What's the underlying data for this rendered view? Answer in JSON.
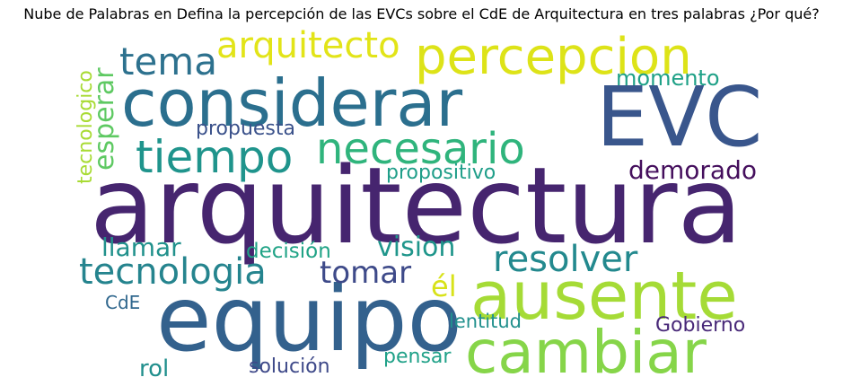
{
  "title": "Nube de Palabras en Defina la percepción de las EVCs sobre el CdE de Arquitectura en tres palabras ¿Por qué?",
  "words": [
    {
      "text": "arquitectura",
      "color": "#46256f"
    },
    {
      "text": "considerar",
      "color": "#2b6f8e"
    },
    {
      "text": "EVC",
      "color": "#39568c"
    },
    {
      "text": "equipo",
      "color": "#33618d"
    },
    {
      "text": "ausente",
      "color": "#a5db36"
    },
    {
      "text": "cambiar",
      "color": "#86d549"
    },
    {
      "text": "percepcion",
      "color": "#dde318"
    },
    {
      "text": "necesario",
      "color": "#2fb47c"
    },
    {
      "text": "tiempo",
      "color": "#1f948c"
    },
    {
      "text": "arquitecto",
      "color": "#e2e418"
    },
    {
      "text": "tema",
      "color": "#2d718e"
    },
    {
      "text": "tecnologia",
      "color": "#25848e"
    },
    {
      "text": "resolver",
      "color": "#23898e"
    },
    {
      "text": "tomar",
      "color": "#3e4a89"
    },
    {
      "text": "momento",
      "color": "#1fa187"
    },
    {
      "text": "demorado",
      "color": "#450f5d"
    },
    {
      "text": "esperar",
      "color": "#5ec962"
    },
    {
      "text": "tecnologico",
      "color": "#a8db34"
    },
    {
      "text": "propuesta",
      "color": "#3b528b"
    },
    {
      "text": "propositivo",
      "color": "#1f9e89"
    },
    {
      "text": "llamar",
      "color": "#21918c"
    },
    {
      "text": "decisión",
      "color": "#20a386"
    },
    {
      "text": "vision",
      "color": "#1f968b"
    },
    {
      "text": "él",
      "color": "#d8e219"
    },
    {
      "text": "CdE",
      "color": "#31688e"
    },
    {
      "text": "rol",
      "color": "#218f8d"
    },
    {
      "text": "solución",
      "color": "#3e4989"
    },
    {
      "text": "lentitud",
      "color": "#21908d"
    },
    {
      "text": "pensar",
      "color": "#1fa188"
    },
    {
      "text": "Gobierno",
      "color": "#482878"
    }
  ]
}
